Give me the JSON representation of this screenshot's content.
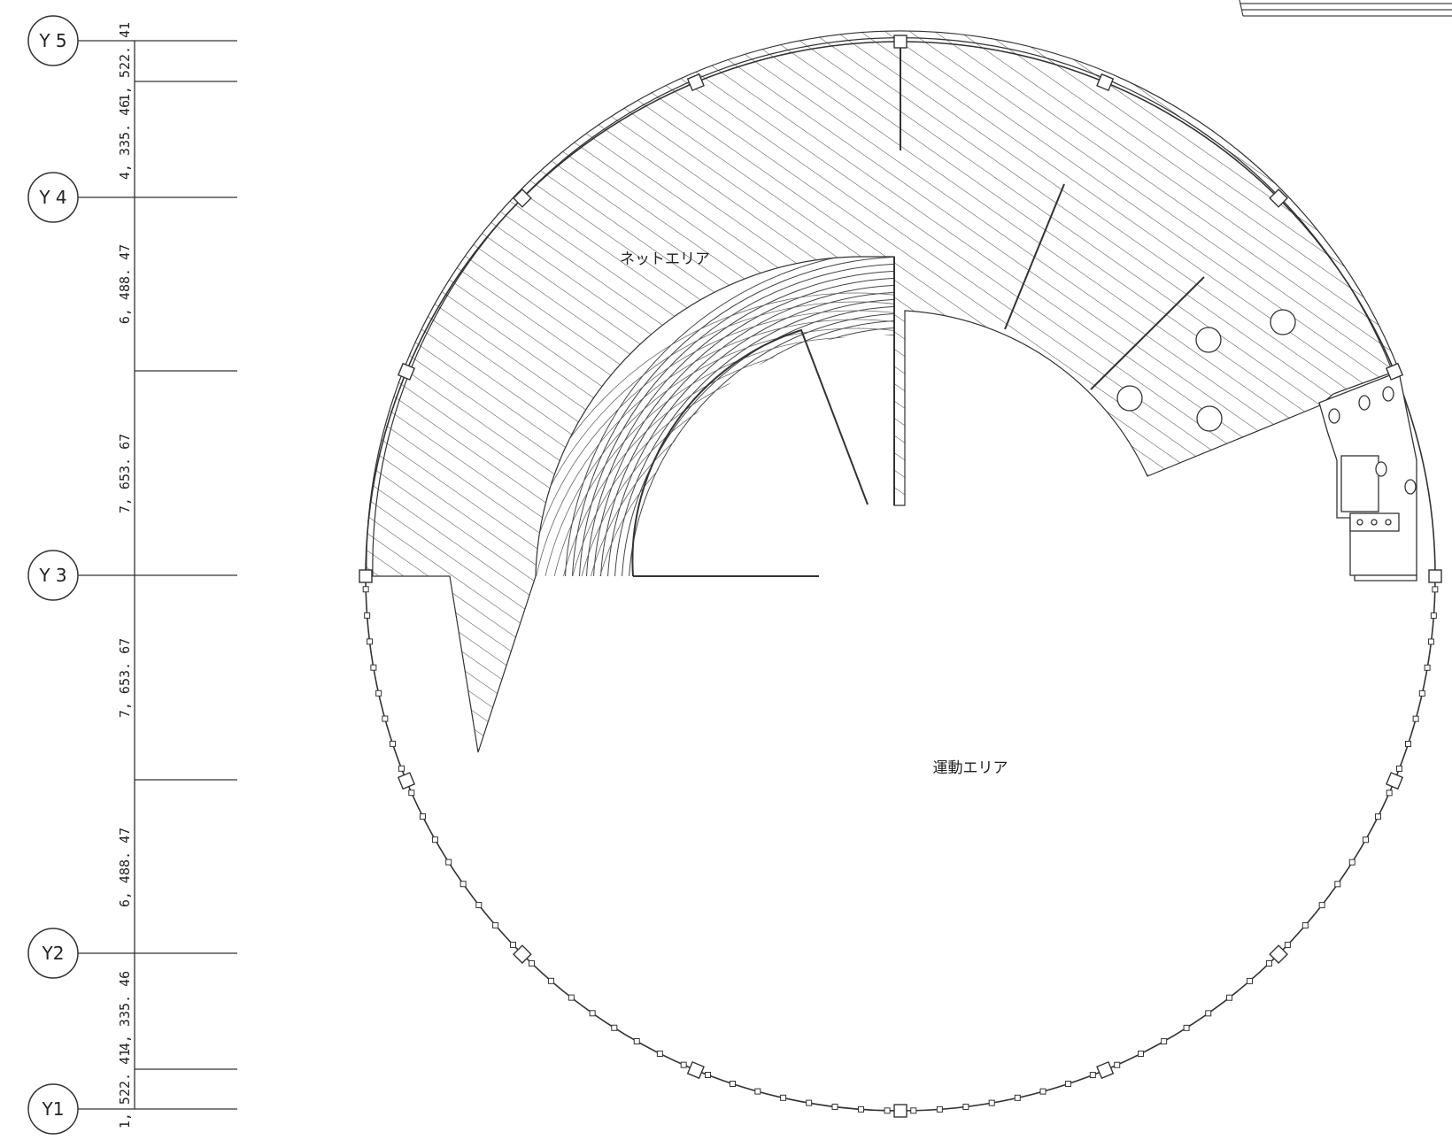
{
  "grid_axes": [
    "Y5",
    "Y4",
    "Y3",
    "Y2",
    "Y1"
  ],
  "grid_labels": {
    "y5": "Y 5",
    "y4": "Y 4",
    "y3": "Y 3",
    "y2": "Y2",
    "y1": "Y1"
  },
  "dimensions": {
    "d1": "1, 522. 41",
    "d2": "4, 335. 46",
    "d3": "6, 488. 47",
    "d4": "7, 653. 67",
    "d5": "7, 653. 67",
    "d6": "6, 488. 47",
    "d7": "4, 335. 46",
    "d8": "1, 522. 41"
  },
  "areas": {
    "net_area": "ネットエリア",
    "exercise_area": "運動エリア"
  },
  "colors": {
    "line": "#333333",
    "hatch": "#555555",
    "background": "#ffffff"
  }
}
